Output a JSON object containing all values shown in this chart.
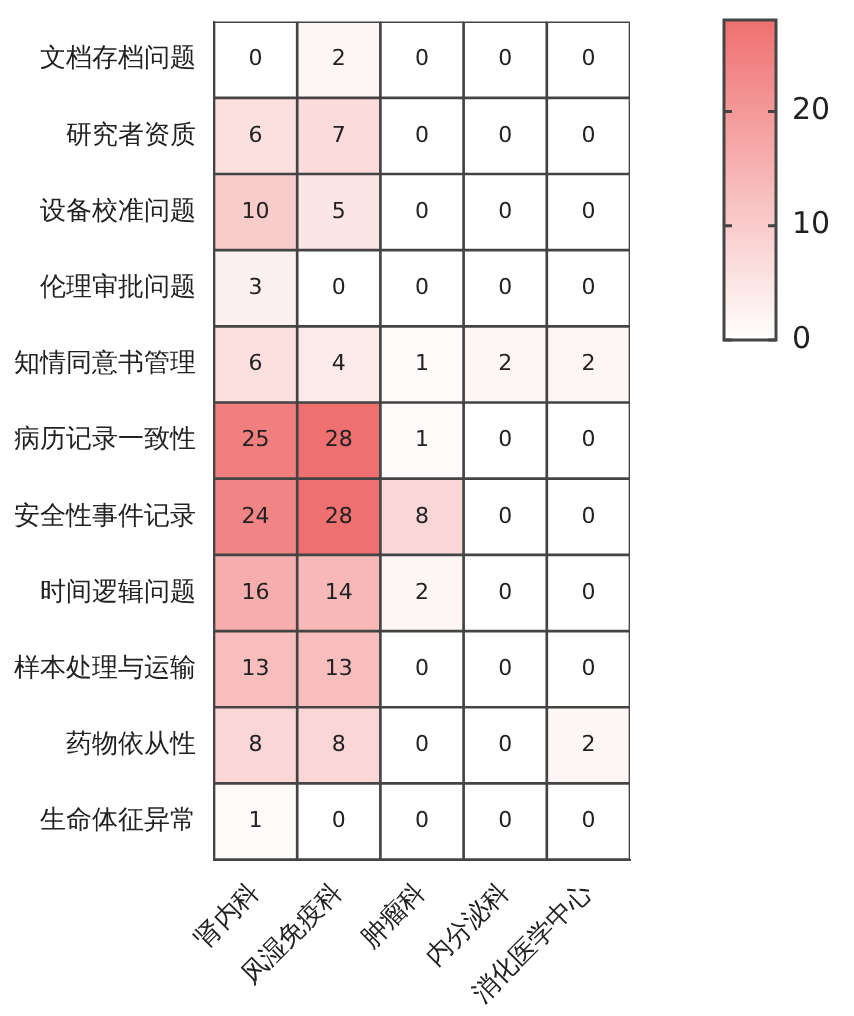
{
  "chart_data": {
    "type": "heatmap",
    "categories": [
      "肾内科",
      "风湿免疫科",
      "肿瘤科",
      "内分泌科",
      "消化医学中心"
    ],
    "y_categories": [
      "文档存档问题",
      "研究者资质",
      "设备校准问题",
      "伦理审批问题",
      "知情同意书管理",
      "病历记录一致性",
      "安全性事件记录",
      "时间逻辑问题",
      "样本处理与运输",
      "药物依从性",
      "生命体征异常"
    ],
    "cells": [
      [
        0,
        2,
        0,
        0,
        0
      ],
      [
        6,
        7,
        0,
        0,
        0
      ],
      [
        10,
        5,
        0,
        0,
        0
      ],
      [
        3,
        0,
        0,
        0,
        0
      ],
      [
        6,
        4,
        1,
        2,
        2
      ],
      [
        25,
        28,
        1,
        0,
        0
      ],
      [
        24,
        28,
        8,
        0,
        0
      ],
      [
        16,
        14,
        2,
        0,
        0
      ],
      [
        13,
        13,
        0,
        0,
        0
      ],
      [
        8,
        8,
        0,
        0,
        2
      ],
      [
        1,
        0,
        0,
        0,
        0
      ]
    ],
    "clim": [
      0,
      28
    ],
    "cticks": [
      0,
      10,
      20
    ],
    "data_labels": true
  }
}
